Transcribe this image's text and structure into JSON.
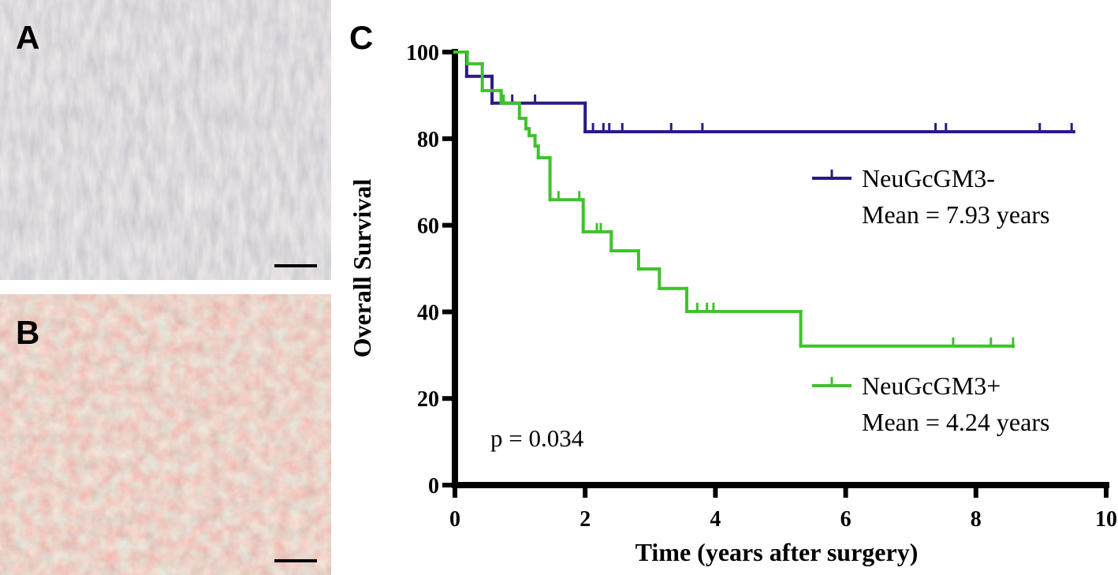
{
  "panel_labels": [
    "A",
    "B",
    "C"
  ],
  "chart_data": {
    "type": "step",
    "xlabel": "Time (years after surgery)",
    "ylabel": "Overall Survival",
    "xlim": [
      0,
      10
    ],
    "xticks": [
      0,
      2,
      4,
      6,
      8,
      10
    ],
    "ylim": [
      0,
      100
    ],
    "yticks": [
      0,
      20,
      40,
      60,
      80,
      100
    ],
    "annotation": "p = 0.034",
    "series": [
      {
        "name": "NeuGcGM3-",
        "mean_label": "Mean = 7.93 years",
        "color": "#2b1a86",
        "x": [
          0,
          0.18,
          0.57,
          2.0,
          9.5
        ],
        "values": [
          100,
          94.4,
          88.2,
          81.6,
          81.6
        ],
        "censor_x": [
          0.88,
          1.23,
          2.12,
          2.28,
          2.37,
          2.57,
          3.32,
          3.8,
          7.38,
          7.54,
          8.98,
          9.47
        ],
        "censor_values": [
          88.2,
          88.2,
          81.6,
          81.6,
          81.6,
          81.6,
          81.6,
          81.6,
          81.6,
          81.6,
          81.6,
          81.6
        ]
      },
      {
        "name": "NeuGcGM3+",
        "mean_label": "Mean = 4.24 years",
        "color": "#3fc22c",
        "x": [
          0,
          0.19,
          0.42,
          0.71,
          0.99,
          1.09,
          1.14,
          1.23,
          1.28,
          1.46,
          1.97,
          2.4,
          2.82,
          3.14,
          3.56,
          5.31,
          8.57
        ],
        "values": [
          100,
          97.3,
          91.1,
          88.2,
          84.7,
          82.3,
          80.7,
          78.3,
          75.6,
          65.9,
          58.5,
          54.1,
          49.9,
          45.4,
          40.1,
          32.1,
          32.1
        ],
        "censor_x": [
          0.75,
          1.59,
          1.91,
          2.18,
          2.24,
          3.72,
          3.87,
          3.97,
          7.65,
          8.23,
          8.57
        ],
        "censor_values": [
          88.2,
          65.9,
          65.9,
          58.5,
          58.5,
          40.1,
          40.1,
          40.1,
          32.1,
          32.1,
          32.1
        ]
      }
    ]
  }
}
